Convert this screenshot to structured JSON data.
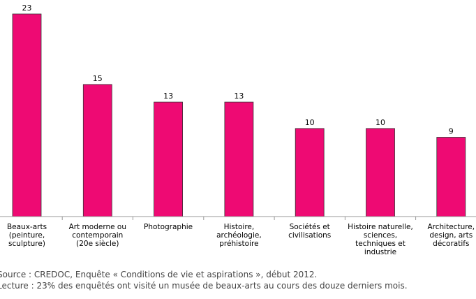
{
  "chart_data": {
    "type": "bar",
    "categories": [
      "Beaux-arts (peinture, sculpture)",
      "Art moderne ou contemporain (20e siècle)",
      "Photographie",
      "Histoire, archéologie, préhistoire",
      "Sociétés et civilisations",
      "Histoire naturelle, sciences, techniques et industrie",
      "Architecture, design, arts décoratifs"
    ],
    "category_lines": [
      [
        "Beaux-arts",
        "(peinture,",
        "sculpture)"
      ],
      [
        "Art moderne ou",
        "contemporain",
        "(20e siècle)"
      ],
      [
        "Photographie"
      ],
      [
        "Histoire,",
        "archéologie,",
        "préhistoire"
      ],
      [
        "Sociétés et",
        "civilisations"
      ],
      [
        "Histoire naturelle,",
        "sciences,",
        "techniques et",
        "industrie"
      ],
      [
        "Architecture,",
        "design, arts",
        "décoratifs"
      ]
    ],
    "values": [
      23,
      15,
      13,
      13,
      10,
      10,
      9
    ],
    "data_labels": [
      "23",
      "15",
      "13",
      "13",
      "10",
      "10",
      "9"
    ],
    "bar_color": "#ee0a73",
    "title": "",
    "xlabel": "",
    "ylabel": "",
    "ylim": [
      0,
      23
    ],
    "grid": false,
    "legend": "none"
  },
  "notes": {
    "source": "Source : CREDOC, Enquête « Conditions de vie et aspirations », début 2012.",
    "reading": "Lecture : 23% des enquêtés ont visité un musée de beaux-arts au cours des douze derniers mois."
  }
}
